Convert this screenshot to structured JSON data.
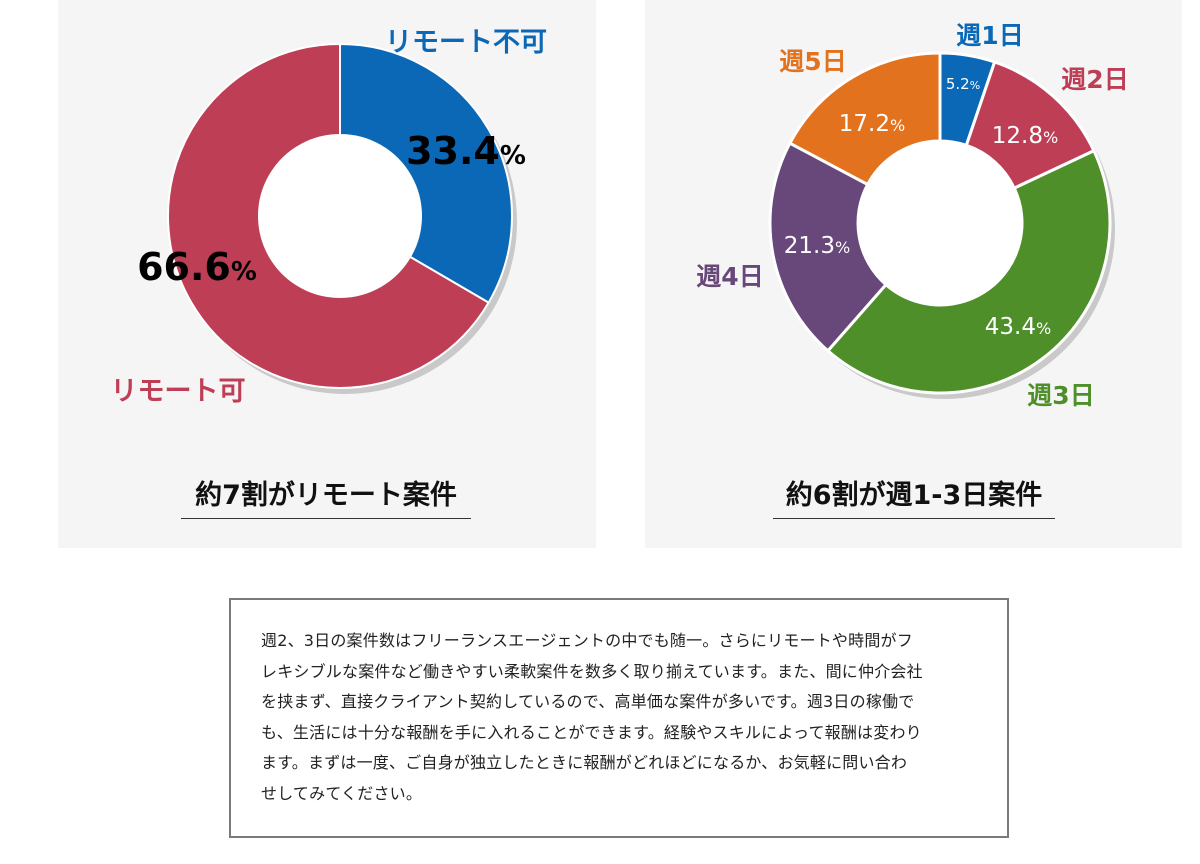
{
  "chart_data": [
    {
      "type": "pie",
      "categories": [
        "リモート不可",
        "リモート可"
      ],
      "values": [
        33.4,
        66.6
      ],
      "value_labels": [
        "33.4",
        "66.6"
      ],
      "unit": "%",
      "colors": [
        "#0a68b7",
        "#be3e56"
      ],
      "title": "約7割がリモート案件"
    },
    {
      "type": "pie",
      "categories": [
        "週1日",
        "週2日",
        "週3日",
        "週4日",
        "週5日"
      ],
      "values": [
        5.2,
        12.8,
        43.4,
        21.3,
        17.2
      ],
      "value_labels": [
        "5.2",
        "12.8",
        "43.4",
        "21.3",
        "17.2"
      ],
      "unit": "%",
      "colors": [
        "#0a68b7",
        "#be3e56",
        "#4e8f2a",
        "#68477a",
        "#e2721e"
      ],
      "title": "約6割が週1-3日案件"
    }
  ],
  "description": {
    "lines": [
      "週2、3日の案件数はフリーランスエージェントの中でも随一。さらにリモートや時間がフ",
      "レキシブルな案件など働きやすい柔軟案件を数多く取り揃えています。また、間に仲介会社",
      "を挟まず、直接クライアント契約しているので、高単価な案件が多いです。週3日の稼働で",
      "も、生活には十分な報酬を手に入れることができます。経験やスキルによって報酬は変わり",
      "ます。まずは一度、ご自身が独立したときに報酬がどれほどになるか、お気軽に問い合わ",
      "せしてみてください。"
    ]
  }
}
